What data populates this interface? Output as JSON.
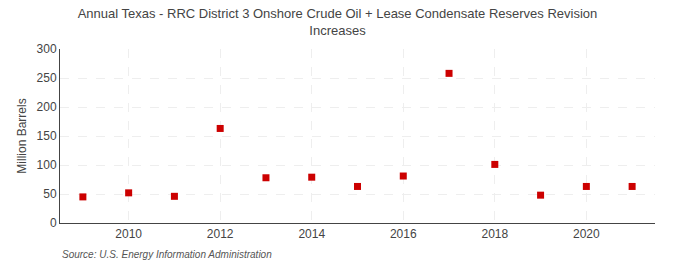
{
  "chart_data": {
    "type": "scatter",
    "title": "Annual Texas - RRC District 3 Onshore Crude Oil + Lease Condensate Reserves Revision\nIncreases",
    "ylabel": "Million Barrels",
    "annotations": [
      "Source: U.S. Energy Information Administration"
    ],
    "x": [
      2009,
      2010,
      2011,
      2012,
      2013,
      2014,
      2015,
      2016,
      2017,
      2018,
      2019,
      2020,
      2021
    ],
    "values": [
      45,
      52,
      46,
      163,
      78,
      79,
      63,
      81,
      258,
      101,
      48,
      63,
      63
    ],
    "color": "#cc0000",
    "marker": "square",
    "xlim": [
      2008.5,
      2021.5
    ],
    "xticks": [
      2010,
      2012,
      2014,
      2016,
      2018,
      2020
    ],
    "ylim": [
      0,
      300
    ],
    "yticks": [
      0,
      50,
      100,
      150,
      200,
      250,
      300
    ],
    "grid": true
  }
}
